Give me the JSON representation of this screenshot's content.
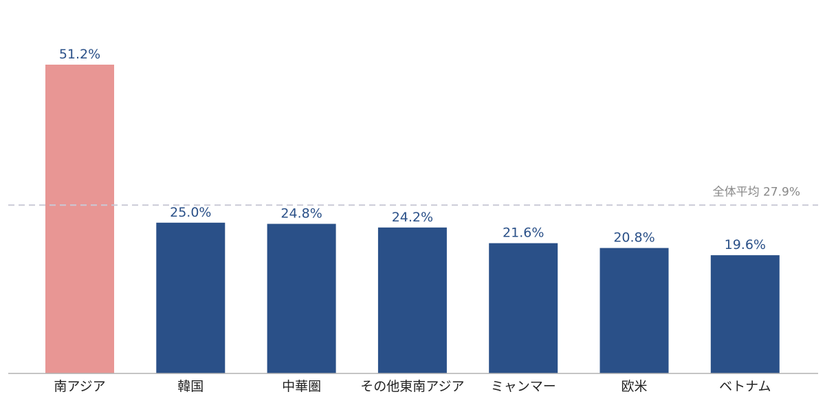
{
  "chart_data": {
    "type": "bar",
    "categories": [
      "南アジア",
      "韓国",
      "中華圏",
      "その他東南アジア",
      "ミャンマー",
      "欧米",
      "ベトナム"
    ],
    "values": [
      51.2,
      25.0,
      24.8,
      24.2,
      21.6,
      20.8,
      19.6
    ],
    "value_labels": [
      "51.2%",
      "25.0%",
      "24.8%",
      "24.2%",
      "21.6%",
      "20.8%",
      "19.6%"
    ],
    "ylim": [
      0,
      55
    ],
    "grid": false,
    "highlight_index": 0,
    "colors": {
      "default": "#2a5088",
      "highlight": "#e89694",
      "value_text": "#2a5088",
      "highlight_value_text": "#2a5088",
      "reference_line": "#c9c9d6",
      "baseline": "#b0b0b0"
    },
    "reference_line": {
      "value": 27.9,
      "label": "全体平均 27.9%"
    }
  }
}
